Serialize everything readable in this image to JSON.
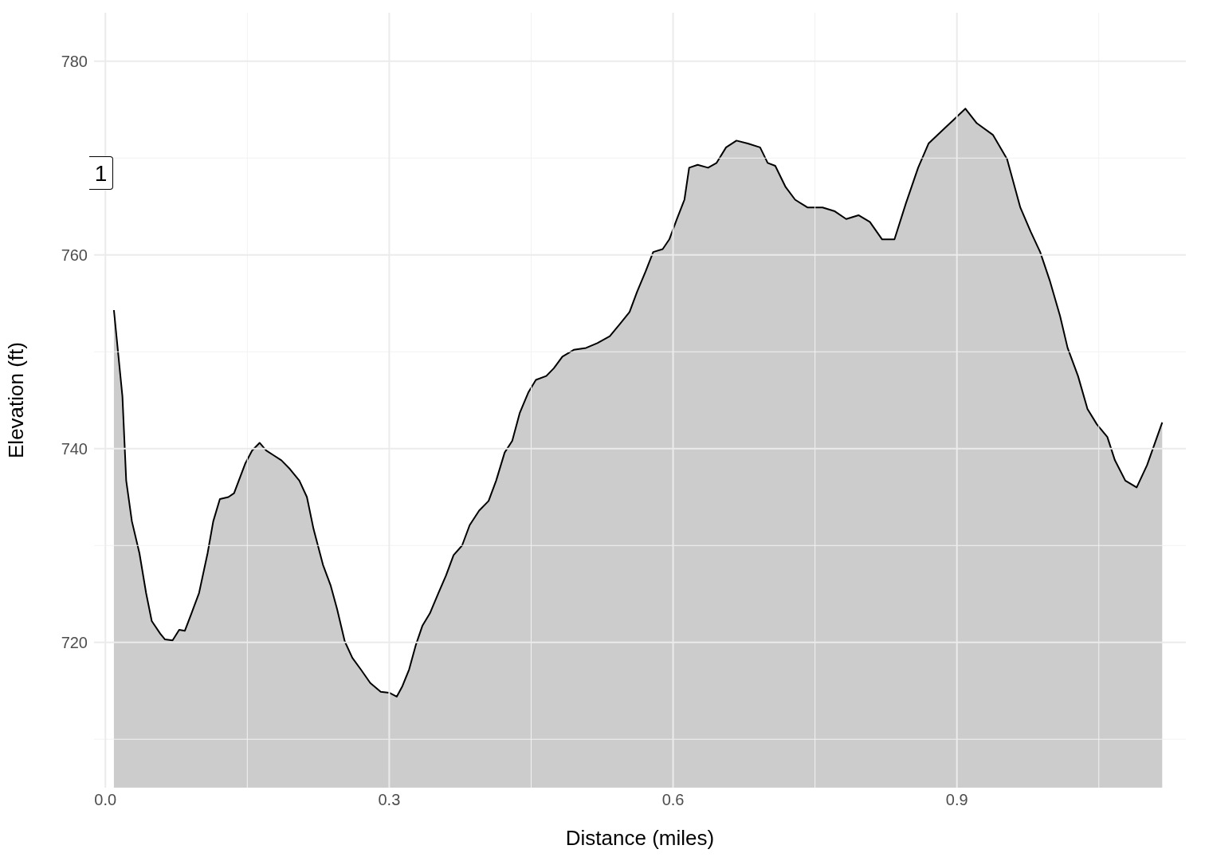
{
  "chart_data": {
    "type": "area",
    "xlabel": "Distance (miles)",
    "ylabel": "Elevation (ft)",
    "x": [
      0.009,
      0.018,
      0.022,
      0.028,
      0.036,
      0.043,
      0.049,
      0.058,
      0.063,
      0.071,
      0.078,
      0.084,
      0.091,
      0.099,
      0.108,
      0.114,
      0.121,
      0.13,
      0.136,
      0.141,
      0.148,
      0.155,
      0.163,
      0.17,
      0.178,
      0.186,
      0.195,
      0.205,
      0.213,
      0.22,
      0.23,
      0.238,
      0.245,
      0.253,
      0.261,
      0.27,
      0.28,
      0.291,
      0.3,
      0.308,
      0.314,
      0.321,
      0.328,
      0.335,
      0.343,
      0.352,
      0.36,
      0.368,
      0.377,
      0.385,
      0.395,
      0.405,
      0.413,
      0.422,
      0.43,
      0.438,
      0.447,
      0.455,
      0.466,
      0.474,
      0.483,
      0.495,
      0.508,
      0.52,
      0.533,
      0.544,
      0.554,
      0.562,
      0.571,
      0.579,
      0.589,
      0.596,
      0.604,
      0.612,
      0.617,
      0.626,
      0.637,
      0.646,
      0.656,
      0.667,
      0.679,
      0.692,
      0.7,
      0.708,
      0.719,
      0.729,
      0.742,
      0.758,
      0.771,
      0.783,
      0.796,
      0.808,
      0.821,
      0.834,
      0.846,
      0.859,
      0.87,
      0.884,
      0.897,
      0.909,
      0.921,
      0.938,
      0.953,
      0.967,
      0.978,
      0.988,
      0.998,
      1.009,
      1.017,
      1.028,
      1.038,
      1.048,
      1.059,
      1.067,
      1.078,
      1.09,
      1.101,
      1.117
    ],
    "series": [
      {
        "color": "#cccccc",
        "values": [
          754.3,
          745.4,
          736.7,
          732.5,
          729.2,
          725.1,
          722.2,
          720.9,
          720.3,
          720.2,
          721.3,
          721.2,
          723.0,
          725.1,
          729.2,
          732.5,
          734.8,
          735.0,
          735.4,
          736.7,
          738.5,
          739.8,
          740.6,
          739.8,
          739.3,
          738.8,
          737.9,
          736.7,
          735.0,
          731.7,
          728.0,
          725.9,
          723.4,
          720.1,
          718.4,
          717.2,
          715.8,
          714.9,
          714.8,
          714.4,
          715.5,
          717.2,
          719.7,
          721.7,
          723.0,
          725.1,
          726.9,
          729.0,
          730.0,
          732.1,
          733.6,
          734.6,
          736.7,
          739.6,
          740.8,
          743.7,
          745.8,
          747.1,
          747.5,
          748.3,
          749.5,
          750.2,
          750.4,
          750.9,
          751.6,
          752.9,
          754.1,
          756.2,
          758.3,
          760.3,
          760.6,
          761.6,
          763.7,
          765.7,
          769.0,
          769.3,
          769.0,
          769.5,
          771.1,
          771.8,
          771.5,
          771.1,
          769.5,
          769.2,
          767.0,
          765.7,
          764.9,
          764.9,
          764.5,
          763.7,
          764.1,
          763.4,
          761.6,
          761.6,
          765.3,
          769.0,
          771.5,
          772.8,
          774.0,
          775.1,
          773.6,
          772.4,
          769.9,
          764.9,
          762.4,
          760.3,
          757.4,
          753.7,
          750.4,
          747.5,
          744.1,
          742.5,
          741.2,
          738.8,
          736.7,
          736.0,
          738.3,
          742.7
        ]
      }
    ],
    "xlim": [
      -0.012,
      1.142
    ],
    "xticks": [
      {
        "value": 0,
        "label": "0.0"
      },
      {
        "value": 0.15,
        "label": null
      },
      0.3,
      {
        "value": 0.45,
        "label": null
      },
      0.6,
      {
        "value": 0.75,
        "label": null
      },
      0.9,
      {
        "value": 1.05,
        "label": null
      }
    ],
    "ylim": [
      705,
      785
    ],
    "yticks": [
      {
        "value": 710,
        "label": null
      },
      720,
      {
        "value": 730,
        "label": null
      },
      740,
      {
        "value": 750,
        "label": null
      },
      760,
      {
        "value": 770,
        "label": null
      },
      780
    ],
    "grid": true,
    "annotations": [
      "1"
    ]
  }
}
